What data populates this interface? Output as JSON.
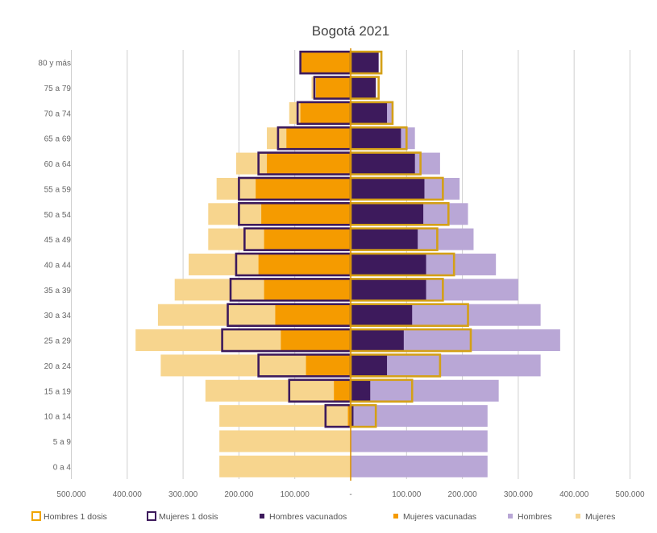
{
  "chart_data": {
    "type": "bar",
    "title": "Bogotá 2021",
    "categories": [
      "0 a 4",
      "5 a 9",
      "10 a 14",
      "15 a 19",
      "20 a 24",
      "25 a 29",
      "30 a 34",
      "35 a 39",
      "40 a 44",
      "45 a 49",
      "50 a 54",
      "55 a 59",
      "60 a 64",
      "65 a 69",
      "70 a 74",
      "75 a 79",
      "80 y más"
    ],
    "category_labels": [
      "0 a 4",
      "5 a 9",
      "10 a 14",
      "15 a 19",
      "20 a 24",
      "25 a 29",
      "30 a 34",
      "35 a 39",
      "40 a 44",
      "45 a 49",
      "50 a 54",
      "55 a 59",
      "60 a 64",
      "65 a 69",
      "70 a 74",
      "75 a 79",
      "80 y más"
    ],
    "xlim": [
      -500000,
      500000
    ],
    "xticks": [
      -500000,
      -400000,
      -300000,
      -200000,
      -100000,
      0,
      100000,
      200000,
      300000,
      400000,
      500000
    ],
    "xtick_labels": [
      "500.000",
      "400.000",
      "300.000",
      "200.000",
      "100.000",
      "-",
      "100.000",
      "200.000",
      "300.000",
      "400.000",
      "500.000"
    ],
    "grid": true,
    "legend_position": "bottom",
    "series": [
      {
        "name": "Hombres 1 dosis",
        "side": "left",
        "style": "outline",
        "color": "#D4A017",
        "values": [
          0,
          0,
          0,
          0,
          0,
          0,
          0,
          0,
          0,
          0,
          0,
          0,
          0,
          0,
          0,
          0,
          0
        ]
      },
      {
        "name": "Mujeres 1 dosis",
        "side": "left",
        "style": "outline",
        "color": "#3D1A5C",
        "values": [
          0,
          0,
          45000,
          110000,
          165000,
          230000,
          220000,
          215000,
          205000,
          190000,
          200000,
          200000,
          165000,
          130000,
          95000,
          65000,
          90000
        ]
      },
      {
        "name": "Hombres vacunados",
        "side": "right",
        "style": "fill",
        "color": "#3D1A5C",
        "values": [
          0,
          0,
          5000,
          35000,
          65000,
          95000,
          110000,
          135000,
          135000,
          120000,
          130000,
          132000,
          115000,
          90000,
          65000,
          45000,
          50000
        ]
      },
      {
        "name": "Mujeres vacunadas",
        "side": "left",
        "style": "fill",
        "color": "#F59B00",
        "values": [
          0,
          0,
          5000,
          30000,
          80000,
          125000,
          135000,
          155000,
          165000,
          155000,
          160000,
          170000,
          150000,
          115000,
          90000,
          62000,
          88000
        ]
      },
      {
        "name": "Hombres",
        "side": "right",
        "style": "fill",
        "color": "#B9A7D6",
        "values": [
          245000,
          245000,
          245000,
          265000,
          340000,
          375000,
          340000,
          300000,
          260000,
          220000,
          210000,
          195000,
          160000,
          115000,
          75000,
          45000,
          50000
        ]
      },
      {
        "name": "Mujeres",
        "side": "left",
        "style": "fill",
        "color": "#F7D58E",
        "values": [
          235000,
          235000,
          235000,
          260000,
          340000,
          385000,
          345000,
          315000,
          290000,
          255000,
          255000,
          240000,
          205000,
          150000,
          110000,
          70000,
          90000
        ]
      }
    ],
    "outline_right": {
      "name": "Hombres 1 dosis",
      "values": [
        0,
        0,
        45000,
        110000,
        160000,
        215000,
        210000,
        165000,
        185000,
        155000,
        175000,
        165000,
        125000,
        100000,
        75000,
        50000,
        55000
      ]
    }
  }
}
